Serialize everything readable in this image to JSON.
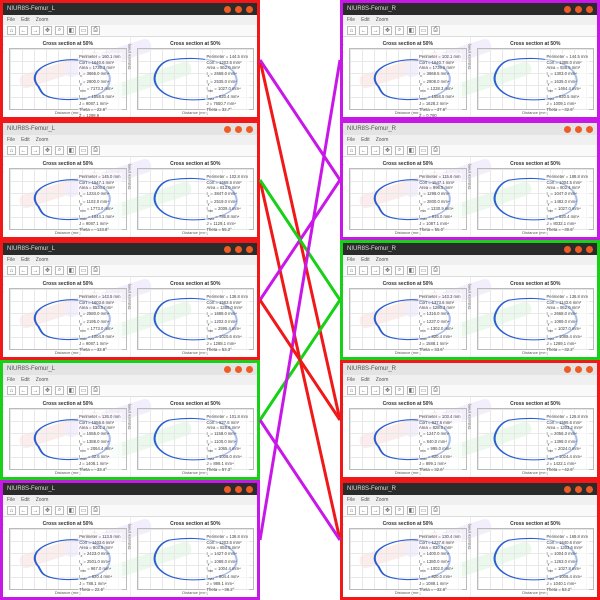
{
  "window_title_left": "NIUR8S-Femur_L",
  "window_title_right": "NIUR8S-Femur_R",
  "menu": [
    "File",
    "Edit",
    "Zoom"
  ],
  "toolbar_icons": [
    "⌂",
    "←",
    "→",
    "✥",
    "⌕",
    "◧",
    "▭",
    "⎙"
  ],
  "plot_title": "Cross section at 50%",
  "xlabel": "Distance (mm)",
  "ylabel": "Distance (mm)",
  "border_colors": {
    "red": "#f01818",
    "green": "#18d018",
    "magenta": "#c818e8"
  },
  "titlebar_colors": {
    "dark": "#2b2b2b",
    "light": "#e4e4e4"
  },
  "grid_color": "#e8e8e8",
  "axis_color": "#bbbbbb",
  "curve_color": "#2a5fd0",
  "watermark_colors": [
    "#f6b0b0",
    "#c9b6f2",
    "#a8e8b0"
  ],
  "stat_labels": [
    "Perimeter",
    "Cort",
    "Area",
    "I<sub>x</sub>",
    "I<sub>y</sub>",
    "I<sub>min</sub>",
    "I<sub>max</sub>",
    "J",
    "Theta",
    "Z"
  ],
  "panels_left": [
    {
      "border": "red",
      "tb": "dark",
      "stats1": [
        "160.1 mm",
        "1640.6 mm²",
        "1739.3 mm²",
        "3666.0 mm⁴",
        "2800.0 mm⁴",
        "7173.3 mm⁴",
        "1558.5 mm⁴",
        "9087.1 mm⁴",
        "−22.6°",
        "1288.9"
      ],
      "stats2": [
        "144.5 mm",
        "1203.6 mm²",
        "862.0 mm²",
        "2668.0 mm⁴",
        "2535.0 mm⁴",
        "1027.0 mm⁴",
        "820.4 mm⁴",
        "7650.7 mm⁴",
        "32.7°"
      ]
    },
    {
      "border": "red",
      "tb": "light",
      "stats1": [
        "145.0 mm",
        "1547.1 mm²",
        "1204.0 mm²",
        "1234.0 mm⁴",
        "1102.0 mm⁴",
        "1773.0 mm⁴",
        "1644.1 mm⁴",
        "9087.1 mm⁴",
        "−123.8°"
      ],
      "stats2": [
        "102.8 mm",
        "1668.6 mm²",
        "813.0 mm²",
        "3847.0 mm⁴",
        "2519.0 mm⁴",
        "2039.4 mm⁴",
        "786.8 mm⁴",
        "1129.1 mm⁴",
        "55.2°"
      ]
    },
    {
      "border": "red",
      "tb": "dark",
      "stats1": [
        "143.5 mm",
        "1603.6 mm²",
        "853.0 mm²",
        "2580.0 mm⁴",
        "2195.0 mm⁴",
        "1773.0 mm⁴",
        "1004.9 mm⁴",
        "9087.1 mm⁴",
        "−32.8°"
      ],
      "stats2": [
        "136.8 mm",
        "1563.6 mm²",
        "1380.0 mm²",
        "1688.0 mm⁴",
        "1202.0 mm⁴",
        "2595.4 mm⁴",
        "1020.6 mm⁴",
        "1288.1 mm⁴",
        "53.3°"
      ]
    },
    {
      "border": "green",
      "tb": "light",
      "stats1": [
        "126.0 mm",
        "1556.6 mm²",
        "1301.2 mm²",
        "1555.0 mm⁴",
        "1388.0 mm⁴",
        "2064.4 mm⁴",
        "32.6 mm⁴",
        "1408.1 mm⁴",
        "−33.4°"
      ],
      "stats2": [
        "101.8 mm",
        "827.6 mm²",
        "828.6 mm²",
        "1158.0 mm⁴",
        "1100.0 mm⁴",
        "1065.4 mm⁴",
        "1008.0 mm⁴",
        "899.1 mm⁴",
        "57.3°"
      ]
    },
    {
      "border": "magenta",
      "tb": "dark",
      "stats1": [
        "113.5 mm",
        "1403.6 mm²",
        "803.5 mm²",
        "2423.0 mm⁴",
        "2501.0 mm⁴",
        "967.0 mm⁴",
        "820.4 mm⁴",
        "788.1 mm⁴",
        "22.6°"
      ],
      "stats2": [
        "136.8 mm",
        "1203.6 mm²",
        "850.5 mm²",
        "1427.0 mm⁴",
        "1088.0 mm⁴",
        "1004.4 mm⁴",
        "804.4 mm⁴",
        "989.1 mm⁴",
        "−36.2°"
      ]
    }
  ],
  "panels_right": [
    {
      "border": "magenta",
      "tb": "dark",
      "stats1": [
        "102.1 mm",
        "1640.7 mm²",
        "1739.5 mm²",
        "3668.5 mm⁴",
        "2908.0 mm⁴",
        "1238.3 mm⁴",
        "1558.5 mm⁴",
        "1628.2 mm⁴",
        "−37.6°",
        "0.780"
      ],
      "stats2": [
        "144.5 mm",
        "1388.0 mm²",
        "938.5 mm²",
        "1303.0 mm⁴",
        "1635.0 mm⁴",
        "1464.4 mm⁴",
        "820.5 mm⁴",
        "1009.1 mm⁴",
        "−32.6°"
      ]
    },
    {
      "border": "magenta",
      "tb": "light",
      "stats1": [
        "115.6 mm",
        "1547.1 mm²",
        "996.5 mm²",
        "1296.0 mm⁴",
        "2800.0 mm⁴",
        "1330.9 mm⁴",
        "916.0 mm⁴",
        "1087.1 mm⁴",
        "55.0°"
      ],
      "stats2": [
        "188.8 mm",
        "1004.5 mm²",
        "802.4 mm²",
        "1047.0 mm⁴",
        "1482.0 mm⁴",
        "1027.0 mm⁴",
        "820.4 mm⁴",
        "8032.1 mm⁴",
        "−30.6°"
      ]
    },
    {
      "border": "green",
      "tb": "dark",
      "stats1": [
        "143.3 mm",
        "1373.6 mm²",
        "1286.3 mm²",
        "1316.0 mm⁴",
        "1237.0 mm⁴",
        "1302.0 mm⁴",
        "820.4 mm⁴",
        "1588.1 mm⁴",
        "33.6°"
      ],
      "stats2": [
        "136.8 mm",
        "1143.6 mm²",
        "862.0 mm²",
        "2668.0 mm⁴",
        "1089.0 mm⁴",
        "1027.0 mm⁴",
        "1089.4 mm⁴",
        "1289.1 mm⁴",
        "−32.2°"
      ]
    },
    {
      "border": "red",
      "tb": "light",
      "stats1": [
        "103.4 mm",
        "837.6 mm²",
        "828.0 mm²",
        "1247.0 mm⁴",
        "840.0 mm⁴",
        "995.0 mm⁴",
        "820.4 mm⁴",
        "899.1 mm⁴",
        "32.6°"
      ],
      "stats2": [
        "126.8 mm",
        "1596.6 mm²",
        "1303.2 mm²",
        "2056.3 mm⁴",
        "1398.0 mm⁴",
        "2024.0 mm⁴",
        "1024.4 mm⁴",
        "1422.1 mm⁴",
        "−42.6°"
      ]
    },
    {
      "border": "red",
      "tb": "dark",
      "stats1": [
        "130.4 mm",
        "1237.8 mm²",
        "830.4 mm²",
        "1400.0 mm⁴",
        "1380.0 mm⁴",
        "1002.0 mm⁴",
        "820.0 mm⁴",
        "1089.1 mm⁴",
        "−32.6°"
      ],
      "stats2": [
        "169.8 mm",
        "1640.6 mm²",
        "1303.6 mm²",
        "1004.0 mm⁴",
        "1263.0 mm⁴",
        "1027.8 mm⁴",
        "1006.4 mm⁴",
        "1040.1 mm⁴",
        "53.2°"
      ]
    }
  ],
  "links": [
    {
      "from": 0,
      "to": 3,
      "color": "#f01818"
    },
    {
      "from": 1,
      "to": 4,
      "color": "#f01818"
    },
    {
      "from": 2,
      "to": 1,
      "color": "#c818e8"
    },
    {
      "from": 3,
      "to": 2,
      "color": "#18d018"
    },
    {
      "from": 1,
      "to": 2,
      "color": "#18d018"
    },
    {
      "from": 0,
      "to": 1,
      "color": "#c818e8"
    },
    {
      "from": 4,
      "to": 0,
      "color": "#c818e8"
    },
    {
      "from": 3,
      "to": 4,
      "color": "#c818e8"
    },
    {
      "from": 2,
      "to": 3,
      "color": "#f01818"
    }
  ],
  "curve_paths": [
    "M20 60 C10 30 40 10 60 15 C85 20 95 40 88 65 C80 88 50 92 35 85 C22 79 25 70 20 60 Z",
    "M25 15 C60 5 88 20 90 50 C92 78 65 92 40 88 C18 84 8 60 12 40 C15 25 20 18 25 15 Z",
    "M15 50 C12 25 40 8 65 12 C88 16 95 45 88 68 C80 90 45 95 25 82 C12 73 16 60 15 50 Z",
    "M30 12 C60 6 90 25 92 55 C94 82 60 95 35 90 C15 86 6 60 10 38 C13 22 22 15 30 12 Z"
  ]
}
